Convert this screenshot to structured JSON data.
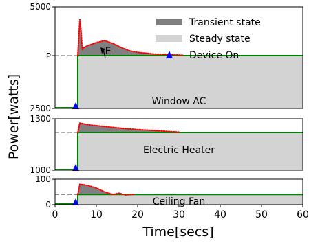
{
  "chart_data": {
    "type": "area",
    "xlabel": "Time[secs]",
    "ylabel": "Power[watts]",
    "xlim": [
      0,
      60
    ],
    "x_ticks": [
      "0",
      "10",
      "20",
      "30",
      "40",
      "50",
      "60"
    ],
    "legend": {
      "position": "top-right",
      "entries": [
        {
          "label": "Transient state",
          "color": "#808080",
          "kind": "band"
        },
        {
          "label": "Steady state",
          "color": "#d3d3d3",
          "kind": "band"
        },
        {
          "label": "Device On",
          "color": "#0000ff",
          "kind": "marker"
        }
      ]
    },
    "colors": {
      "transient": "#808080",
      "steady": "#d3d3d3",
      "steady_line": "#008000",
      "transient_line": "#ff0000",
      "device_on": "#0000ff",
      "reference_line": "#808080"
    },
    "panels": [
      {
        "name": "Window AC",
        "ylim": [
          2500,
          5000
        ],
        "y_ticks": [
          "2500",
          "5000"
        ],
        "reference_label": "P",
        "steady_value": 3800,
        "device_on": 5,
        "transient_end": 31,
        "annotation": {
          "text": "E",
          "points_to": [
            11,
            3850
          ]
        },
        "transient": [
          [
            5.5,
            3800
          ],
          [
            6.0,
            4700
          ],
          [
            6.3,
            4400
          ],
          [
            6.6,
            3950
          ],
          [
            7.0,
            4000
          ],
          [
            8.0,
            4050
          ],
          [
            10.0,
            4120
          ],
          [
            12.0,
            4170
          ],
          [
            14.0,
            4100
          ],
          [
            16.0,
            4000
          ],
          [
            18.0,
            3920
          ],
          [
            20.0,
            3880
          ],
          [
            24.0,
            3840
          ],
          [
            28.0,
            3825
          ],
          [
            31.0,
            3810
          ]
        ]
      },
      {
        "name": "Electric Heater",
        "ylim": [
          1000,
          1300
        ],
        "y_ticks": [
          "1000",
          "1300"
        ],
        "steady_value": 1220,
        "device_on": 5,
        "transient_end": 30,
        "transient": [
          [
            5.5,
            1220
          ],
          [
            6.0,
            1275
          ],
          [
            8.0,
            1265
          ],
          [
            12.0,
            1255
          ],
          [
            16.0,
            1245
          ],
          [
            20.0,
            1237
          ],
          [
            25.0,
            1230
          ],
          [
            30.0,
            1222
          ]
        ]
      },
      {
        "name": "Ceiling Fan",
        "ylim": [
          0,
          100
        ],
        "y_ticks": [
          "0",
          "100"
        ],
        "steady_value": 40,
        "device_on": 5,
        "transient_end": 19,
        "transient": [
          [
            5.5,
            40
          ],
          [
            6.0,
            80
          ],
          [
            8.0,
            75
          ],
          [
            10.0,
            65
          ],
          [
            12.0,
            50
          ],
          [
            14.0,
            40
          ],
          [
            15.5,
            45
          ],
          [
            17.0,
            38
          ],
          [
            19.0,
            40
          ]
        ]
      }
    ]
  }
}
